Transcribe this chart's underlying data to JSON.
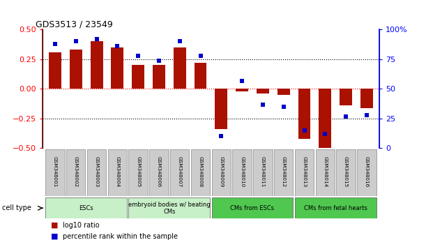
{
  "title": "GDS3513 / 23549",
  "samples": [
    "GSM348001",
    "GSM348002",
    "GSM348003",
    "GSM348004",
    "GSM348005",
    "GSM348006",
    "GSM348007",
    "GSM348008",
    "GSM348009",
    "GSM348010",
    "GSM348011",
    "GSM348012",
    "GSM348013",
    "GSM348014",
    "GSM348015",
    "GSM348016"
  ],
  "log10_ratio": [
    0.31,
    0.33,
    0.4,
    0.35,
    0.2,
    0.2,
    0.35,
    0.22,
    -0.34,
    -0.02,
    -0.04,
    -0.05,
    -0.42,
    -0.5,
    -0.14,
    -0.16
  ],
  "percentile_rank": [
    88,
    90,
    92,
    86,
    78,
    74,
    90,
    78,
    10,
    57,
    37,
    35,
    15,
    12,
    27,
    28
  ],
  "cell_types": [
    {
      "label": "ESCs",
      "start": 0,
      "end": 4,
      "color": "#c8f0c8"
    },
    {
      "label": "embryoid bodies w/ beating\nCMs",
      "start": 4,
      "end": 8,
      "color": "#c8f0c8"
    },
    {
      "label": "CMs from ESCs",
      "start": 8,
      "end": 12,
      "color": "#50c850"
    },
    {
      "label": "CMs from fetal hearts",
      "start": 12,
      "end": 16,
      "color": "#50c850"
    }
  ],
  "bar_color": "#aa1100",
  "dot_color": "#0000cc",
  "left_ylim": [
    -0.5,
    0.5
  ],
  "right_ylim": [
    0,
    100
  ],
  "left_yticks": [
    -0.5,
    -0.25,
    0,
    0.25,
    0.5
  ],
  "right_yticks": [
    0,
    25,
    50,
    75,
    100
  ],
  "hlines_dotted": [
    0.25,
    -0.25
  ],
  "hline_red_dotted": 0,
  "background_color": "#ffffff",
  "bar_width": 0.6
}
